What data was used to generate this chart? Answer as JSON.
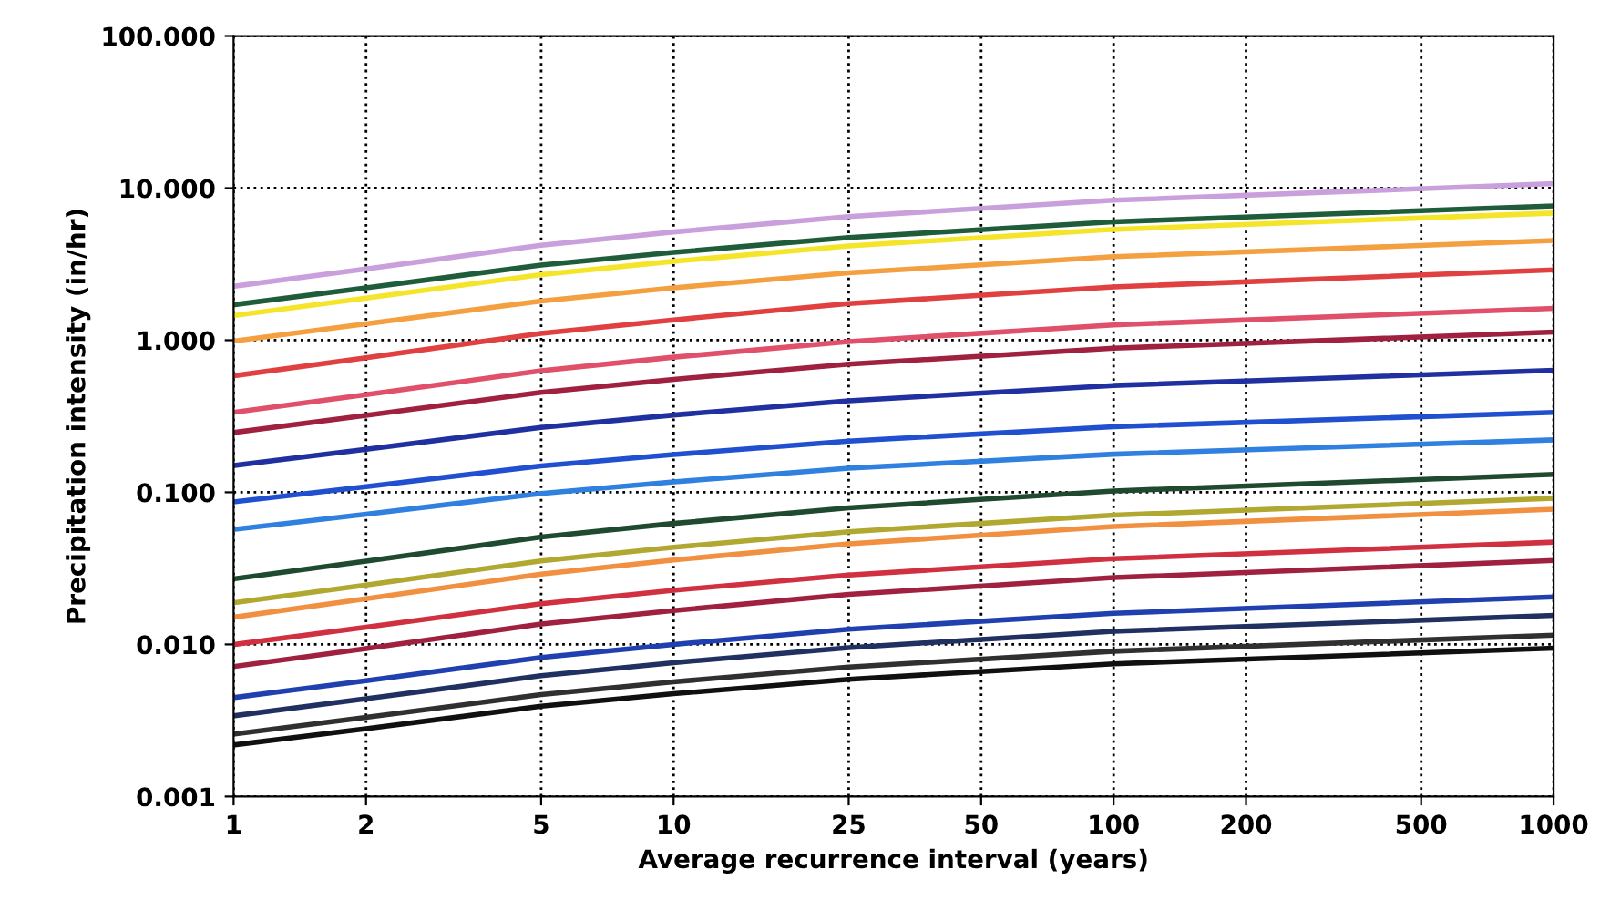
{
  "chart_data": {
    "type": "line",
    "xlabel": "Average recurrence interval (years)",
    "ylabel": "Precipitation intensity (in/hr)",
    "log": "xy",
    "grid": true,
    "marker": "none",
    "line_style": "solid",
    "xlim": [
      1,
      1000
    ],
    "xticks": [
      1,
      2,
      5,
      10,
      25,
      50,
      100,
      200,
      500,
      1000
    ],
    "ylim": [
      0.001,
      100
    ],
    "yticks": [
      {
        "value": 0.001,
        "label": "0.001"
      },
      {
        "value": 0.01,
        "label": "0.010"
      },
      {
        "value": 0.1,
        "label": "0.100"
      },
      {
        "value": 1,
        "label": "1.000"
      },
      {
        "value": 10,
        "label": "10.000"
      },
      {
        "value": 100,
        "label": "100.000"
      }
    ],
    "x": [
      1,
      2,
      5,
      10,
      25,
      100,
      1000
    ],
    "series": [
      {
        "color": "#c9a0dc",
        "values": [
          2.26,
          2.94,
          4.21,
          5.15,
          6.5,
          8.32,
          10.7
        ]
      },
      {
        "color": "#1f5c3a",
        "values": [
          1.71,
          2.21,
          3.12,
          3.78,
          4.73,
          6.01,
          7.64
        ]
      },
      {
        "color": "#f5e52a",
        "values": [
          1.45,
          1.89,
          2.7,
          3.3,
          4.17,
          5.35,
          6.85
        ]
      },
      {
        "color": "#f5a040",
        "values": [
          0.986,
          1.28,
          1.81,
          2.21,
          2.77,
          3.54,
          4.52
        ]
      },
      {
        "color": "#e04040",
        "values": [
          0.583,
          0.766,
          1.11,
          1.36,
          1.74,
          2.24,
          2.9
        ]
      },
      {
        "color": "#e0506a",
        "values": [
          0.335,
          0.438,
          0.63,
          0.773,
          0.98,
          1.26,
          1.62
        ]
      },
      {
        "color": "#a02040",
        "values": [
          0.247,
          0.32,
          0.454,
          0.553,
          0.695,
          0.887,
          1.13
        ]
      },
      {
        "color": "#2030a0",
        "values": [
          0.15,
          0.192,
          0.267,
          0.322,
          0.4,
          0.504,
          0.634
        ]
      },
      {
        "color": "#2050d0",
        "values": [
          0.0865,
          0.109,
          0.149,
          0.177,
          0.217,
          0.27,
          0.335
        ]
      },
      {
        "color": "#3080e0",
        "values": [
          0.057,
          0.0718,
          0.0982,
          0.117,
          0.144,
          0.178,
          0.221
        ]
      },
      {
        "color": "#1f4a30",
        "values": [
          0.027,
          0.0353,
          0.0508,
          0.0624,
          0.0791,
          0.102,
          0.131
        ]
      },
      {
        "color": "#b0a830",
        "values": [
          0.0188,
          0.0246,
          0.0354,
          0.0435,
          0.0551,
          0.0708,
          0.0912
        ]
      },
      {
        "color": "#f09040",
        "values": [
          0.0151,
          0.02,
          0.029,
          0.0359,
          0.0458,
          0.0596,
          0.0773
        ]
      },
      {
        "color": "#d03040",
        "values": [
          0.00998,
          0.013,
          0.0185,
          0.0227,
          0.0286,
          0.0366,
          0.047
        ]
      },
      {
        "color": "#a02040",
        "values": [
          0.00716,
          0.0094,
          0.0136,
          0.0167,
          0.0213,
          0.0275,
          0.0356
        ]
      },
      {
        "color": "#2040b0",
        "values": [
          0.00447,
          0.00578,
          0.0082,
          0.01,
          0.0126,
          0.016,
          0.0205
        ]
      },
      {
        "color": "#203060",
        "values": [
          0.00339,
          0.00439,
          0.00622,
          0.00759,
          0.00953,
          0.0122,
          0.0155
        ]
      },
      {
        "color": "#303030",
        "values": [
          0.00257,
          0.00331,
          0.00468,
          0.00568,
          0.0071,
          0.00902,
          0.0115
        ]
      },
      {
        "color": "#101010",
        "values": [
          0.00218,
          0.00279,
          0.00392,
          0.00474,
          0.0059,
          0.00746,
          0.00944
        ]
      }
    ]
  }
}
